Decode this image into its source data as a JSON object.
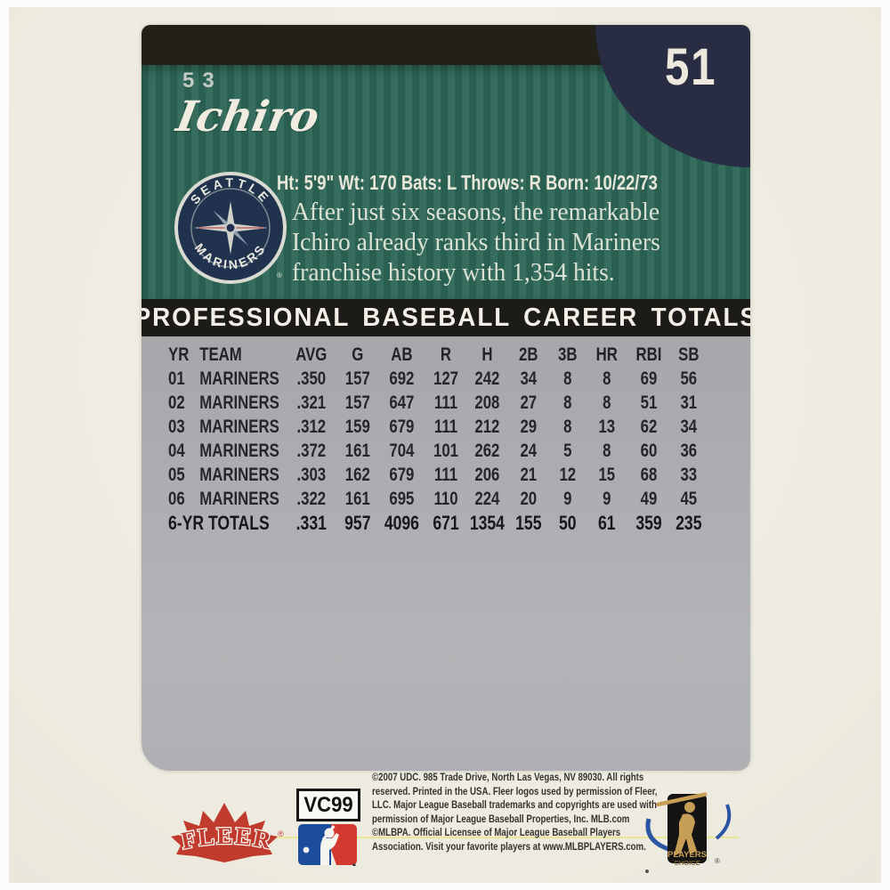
{
  "card": {
    "set_number": "53",
    "player_name": "Ichiro",
    "card_number": "51",
    "team_logo": {
      "top": "SEATTLE",
      "bottom": "MARINERS",
      "reg": "®"
    },
    "bio_line": "Ht: 5'9\" Wt: 170 Bats: L Throws: R Born: 10/22/73",
    "description_lines": [
      "After just six seasons, the remarkable",
      "Ichiro already ranks third in Mariners",
      "franchise history with 1,354 hits."
    ],
    "stats_title": "PROFESSIONAL BASEBALL CAREER TOTALS",
    "stats": {
      "columns": [
        "YR",
        "TEAM",
        "AVG",
        "G",
        "AB",
        "R",
        "H",
        "2B",
        "3B",
        "HR",
        "RBI",
        "SB"
      ],
      "rows": [
        [
          "01",
          "MARINERS",
          ".350",
          "157",
          "692",
          "127",
          "242",
          "34",
          "8",
          "8",
          "69",
          "56"
        ],
        [
          "02",
          "MARINERS",
          ".321",
          "157",
          "647",
          "111",
          "208",
          "27",
          "8",
          "8",
          "51",
          "31"
        ],
        [
          "03",
          "MARINERS",
          ".312",
          "159",
          "679",
          "111",
          "212",
          "29",
          "8",
          "13",
          "62",
          "34"
        ],
        [
          "04",
          "MARINERS",
          ".372",
          "161",
          "704",
          "101",
          "262",
          "24",
          "5",
          "8",
          "60",
          "36"
        ],
        [
          "05",
          "MARINERS",
          ".303",
          "162",
          "679",
          "111",
          "206",
          "21",
          "12",
          "15",
          "68",
          "33"
        ],
        [
          "06",
          "MARINERS",
          ".322",
          "161",
          "695",
          "110",
          "224",
          "20",
          "9",
          "9",
          "49",
          "45"
        ]
      ],
      "totals_label": "6-YR TOTALS",
      "totals": [
        ".331",
        "957",
        "4096",
        "671",
        "1354",
        "155",
        "50",
        "61",
        "359",
        "235"
      ]
    }
  },
  "footer": {
    "fleer_logo_text": "FLEER",
    "fleer_reg": "®",
    "product_code": "VC99",
    "legal_text": "©2007 UDC. 985 Trade Drive, North Las Vegas, NV 89030. All rights reserved. Printed in the USA. Fleer logos used by permission of Fleer, LLC. Major League Baseball trademarks and copyrights are used with permission of Major League Baseball Properties, Inc. MLB.com ©MLBPA. Official Licensee of Major League Baseball Players Association. Visit your favorite players at www.MLBPLAYERS.com.",
    "mlbpa": {
      "players": "PLAYERS",
      "choice": "CHOICE",
      "reg": "®"
    }
  },
  "colors": {
    "cream": "#efece1",
    "green": "#2e6758",
    "navy": "#282d44",
    "black_band": "#222019",
    "silver": "#adafb2",
    "fleer_red": "#c13a2e",
    "mlb_blue": "#1c4c9c",
    "mlb_red": "#d4392f",
    "mlbpa_gold": "#c79e55",
    "yellow_pinstripe": "#e9e274"
  }
}
